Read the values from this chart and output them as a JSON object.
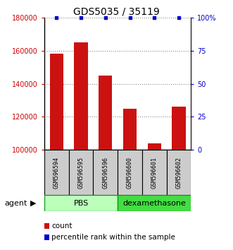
{
  "title": "GDS5035 / 35119",
  "samples": [
    "GSM596594",
    "GSM596595",
    "GSM596596",
    "GSM596600",
    "GSM596601",
    "GSM596602"
  ],
  "counts": [
    158000,
    165000,
    145000,
    125000,
    104000,
    126000
  ],
  "percentiles": [
    100,
    100,
    100,
    100,
    100,
    100
  ],
  "groups": [
    {
      "label": "PBS",
      "start": 0,
      "end": 3,
      "color": "#bbffbb",
      "border": "#009900"
    },
    {
      "label": "dexamethasone",
      "start": 3,
      "end": 6,
      "color": "#44dd44",
      "border": "#009900"
    }
  ],
  "ylim_left": [
    100000,
    180000
  ],
  "ylim_right": [
    0,
    100
  ],
  "yticks_left": [
    100000,
    120000,
    140000,
    160000,
    180000
  ],
  "yticks_right": [
    0,
    25,
    50,
    75,
    100
  ],
  "ytick_labels_left": [
    "100000",
    "120000",
    "140000",
    "160000",
    "180000"
  ],
  "ytick_labels_right": [
    "0",
    "25",
    "50",
    "75",
    "100%"
  ],
  "bar_color": "#cc1111",
  "dot_color": "#0000cc",
  "left_tick_color": "#cc0000",
  "right_tick_color": "#0000cc",
  "group_label_row": "agent",
  "legend_count_label": "count",
  "legend_percentile_label": "percentile rank within the sample",
  "grid_color": "#888888",
  "sample_box_color": "#cccccc",
  "sample_box_border": "#000000"
}
